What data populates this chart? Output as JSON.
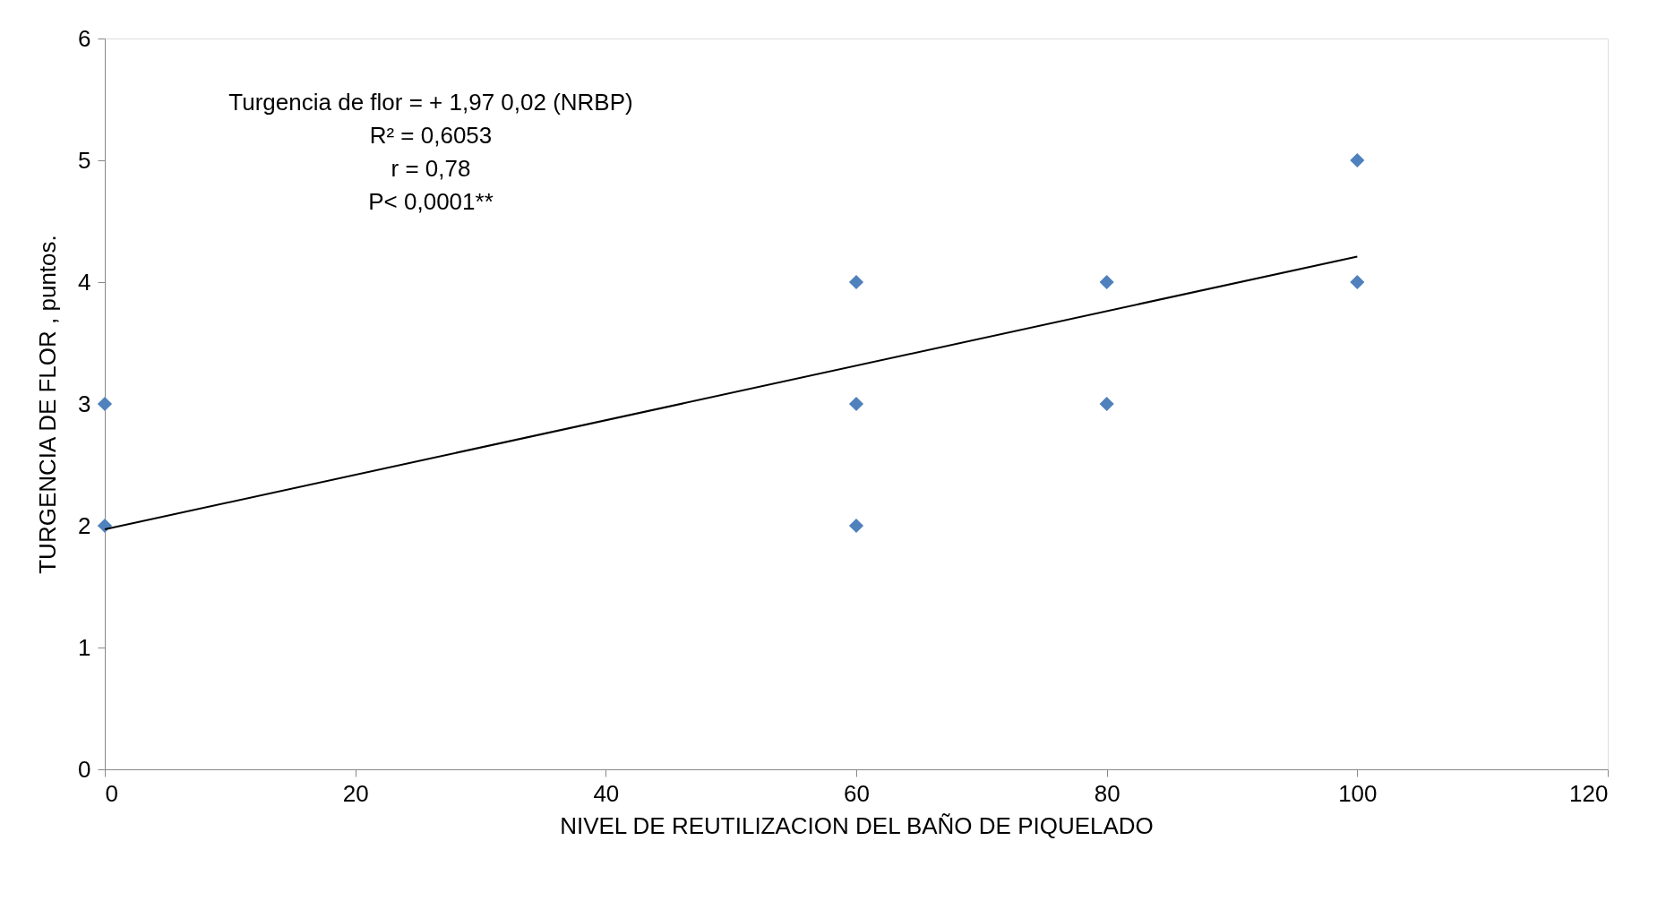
{
  "chart_data": {
    "type": "scatter",
    "xlabel": "NIVEL DE REUTILIZACION DEL BAÑO DE PIQUELADO",
    "ylabel": "TURGENCIA DE FLOR , puntos.",
    "annotations": [
      "Turgencia de flor  = + 1,97 0,02 (NRBP)",
      "R² = 0,6053",
      "r = 0,78",
      "P< 0,0001**"
    ],
    "series": [
      {
        "color": "#4f81bd",
        "marker": "diamond",
        "x": [
          0,
          0,
          60,
          60,
          60,
          80,
          80,
          100,
          100
        ],
        "values": [
          3,
          2,
          4,
          3,
          2,
          4,
          3,
          5,
          4
        ]
      },
      {
        "type": "line",
        "color": "#000000",
        "marker": "none",
        "x": [
          0,
          100
        ],
        "values": [
          1.97,
          4.21
        ]
      }
    ],
    "xlim": [
      0,
      120
    ],
    "xticks": [
      0,
      20,
      40,
      60,
      80,
      100,
      120
    ],
    "ylim": [
      0,
      6
    ],
    "yticks": [
      0,
      1,
      2,
      3,
      4,
      5,
      6
    ],
    "grid": false
  }
}
